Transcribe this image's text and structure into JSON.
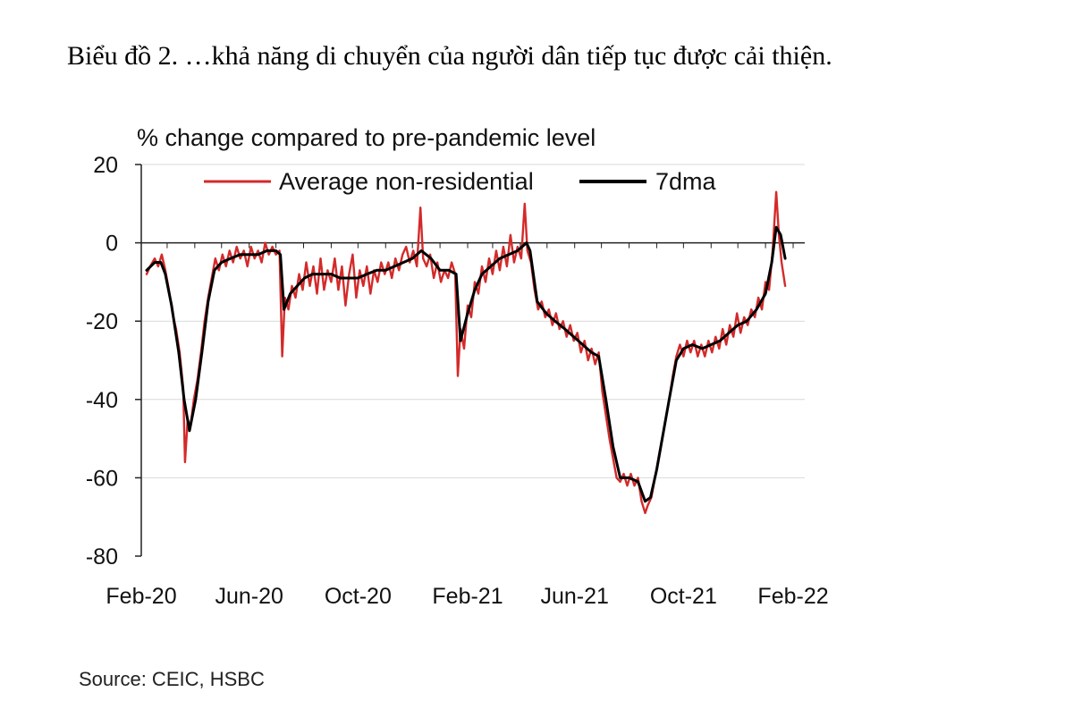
{
  "page": {
    "title": "Biểu đồ 2. …khả năng di chuyển của người dân tiếp tục được cải thiện.",
    "source": "Source:  CEIC, HSBC"
  },
  "colors": {
    "series_red": "#d42a2a",
    "series_black": "#000000",
    "grid": "#d9d9d9",
    "axis": "#222222"
  },
  "chart_data": {
    "type": "line",
    "title": "",
    "ylabel": "% change compared to pre-pandemic level",
    "xlabel": "",
    "ylim": [
      -80,
      20
    ],
    "yticks": [
      20,
      0,
      -20,
      -40,
      -60,
      -80
    ],
    "xlim": [
      "2020-02-15",
      "2022-02-28"
    ],
    "xticks": [
      {
        "date": "2020-02-15",
        "label": "Feb-20"
      },
      {
        "date": "2020-06-15",
        "label": "Jun-20"
      },
      {
        "date": "2020-10-15",
        "label": "Oct-20"
      },
      {
        "date": "2021-02-15",
        "label": "Feb-21"
      },
      {
        "date": "2021-06-15",
        "label": "Jun-21"
      },
      {
        "date": "2021-10-15",
        "label": "Oct-21"
      },
      {
        "date": "2022-02-15",
        "label": "Feb-22"
      }
    ],
    "grid": true,
    "legend_position": "top",
    "series": [
      {
        "name": "Average non-residential",
        "color": "#d42a2a",
        "points": [
          [
            "2020-02-21",
            -8
          ],
          [
            "2020-02-25",
            -6
          ],
          [
            "2020-03-01",
            -4
          ],
          [
            "2020-03-05",
            -6
          ],
          [
            "2020-03-09",
            -3
          ],
          [
            "2020-03-13",
            -7
          ],
          [
            "2020-03-17",
            -12
          ],
          [
            "2020-03-21",
            -18
          ],
          [
            "2020-03-25",
            -22
          ],
          [
            "2020-03-29",
            -28
          ],
          [
            "2020-04-02",
            -37
          ],
          [
            "2020-04-04",
            -56
          ],
          [
            "2020-04-07",
            -45
          ],
          [
            "2020-04-10",
            -47
          ],
          [
            "2020-04-14",
            -40
          ],
          [
            "2020-04-18",
            -35
          ],
          [
            "2020-04-22",
            -28
          ],
          [
            "2020-04-26",
            -20
          ],
          [
            "2020-04-30",
            -14
          ],
          [
            "2020-05-04",
            -9
          ],
          [
            "2020-05-08",
            -4
          ],
          [
            "2020-05-12",
            -7
          ],
          [
            "2020-05-16",
            -3
          ],
          [
            "2020-05-20",
            -6
          ],
          [
            "2020-05-24",
            -2
          ],
          [
            "2020-05-28",
            -5
          ],
          [
            "2020-06-01",
            -1
          ],
          [
            "2020-06-05",
            -4
          ],
          [
            "2020-06-09",
            -2
          ],
          [
            "2020-06-13",
            -6
          ],
          [
            "2020-06-17",
            -1
          ],
          [
            "2020-06-21",
            -4
          ],
          [
            "2020-06-25",
            -2
          ],
          [
            "2020-06-29",
            -5
          ],
          [
            "2020-07-03",
            0
          ],
          [
            "2020-07-07",
            -3
          ],
          [
            "2020-07-11",
            -1
          ],
          [
            "2020-07-15",
            -3
          ],
          [
            "2020-07-19",
            -2
          ],
          [
            "2020-07-22",
            -29
          ],
          [
            "2020-07-25",
            -14
          ],
          [
            "2020-07-29",
            -17
          ],
          [
            "2020-08-02",
            -11
          ],
          [
            "2020-08-06",
            -14
          ],
          [
            "2020-08-10",
            -8
          ],
          [
            "2020-08-14",
            -12
          ],
          [
            "2020-08-18",
            -5
          ],
          [
            "2020-08-22",
            -11
          ],
          [
            "2020-08-26",
            -6
          ],
          [
            "2020-08-30",
            -13
          ],
          [
            "2020-09-03",
            -4
          ],
          [
            "2020-09-07",
            -12
          ],
          [
            "2020-09-11",
            -7
          ],
          [
            "2020-09-15",
            -10
          ],
          [
            "2020-09-19",
            -4
          ],
          [
            "2020-09-23",
            -12
          ],
          [
            "2020-09-27",
            -6
          ],
          [
            "2020-10-01",
            -16
          ],
          [
            "2020-10-05",
            -8
          ],
          [
            "2020-10-09",
            -3
          ],
          [
            "2020-10-13",
            -14
          ],
          [
            "2020-10-17",
            -7
          ],
          [
            "2020-10-21",
            -11
          ],
          [
            "2020-10-25",
            -6
          ],
          [
            "2020-10-29",
            -13
          ],
          [
            "2020-11-02",
            -7
          ],
          [
            "2020-11-06",
            -10
          ],
          [
            "2020-11-10",
            -5
          ],
          [
            "2020-11-14",
            -8
          ],
          [
            "2020-11-18",
            -5
          ],
          [
            "2020-11-22",
            -9
          ],
          [
            "2020-11-26",
            -4
          ],
          [
            "2020-11-30",
            -7
          ],
          [
            "2020-12-04",
            -3
          ],
          [
            "2020-12-08",
            -1
          ],
          [
            "2020-12-12",
            -5
          ],
          [
            "2020-12-16",
            -2
          ],
          [
            "2020-12-20",
            -6
          ],
          [
            "2020-12-24",
            9
          ],
          [
            "2020-12-27",
            -4
          ],
          [
            "2020-12-31",
            -6
          ],
          [
            "2021-01-04",
            -3
          ],
          [
            "2021-01-08",
            -9
          ],
          [
            "2021-01-12",
            -5
          ],
          [
            "2021-01-16",
            -10
          ],
          [
            "2021-01-20",
            -7
          ],
          [
            "2021-01-24",
            -9
          ],
          [
            "2021-01-28",
            -5
          ],
          [
            "2021-02-01",
            -8
          ],
          [
            "2021-02-04",
            -34
          ],
          [
            "2021-02-07",
            -22
          ],
          [
            "2021-02-11",
            -27
          ],
          [
            "2021-02-15",
            -16
          ],
          [
            "2021-02-19",
            -19
          ],
          [
            "2021-02-23",
            -10
          ],
          [
            "2021-02-27",
            -13
          ],
          [
            "2021-03-03",
            -6
          ],
          [
            "2021-03-07",
            -10
          ],
          [
            "2021-03-11",
            -4
          ],
          [
            "2021-03-15",
            -8
          ],
          [
            "2021-03-19",
            -2
          ],
          [
            "2021-03-23",
            -7
          ],
          [
            "2021-03-27",
            -1
          ],
          [
            "2021-03-31",
            -6
          ],
          [
            "2021-04-04",
            2
          ],
          [
            "2021-04-08",
            -5
          ],
          [
            "2021-04-12",
            -1
          ],
          [
            "2021-04-16",
            -4
          ],
          [
            "2021-04-20",
            10
          ],
          [
            "2021-04-23",
            -2
          ],
          [
            "2021-04-27",
            -5
          ],
          [
            "2021-05-01",
            -12
          ],
          [
            "2021-05-05",
            -17
          ],
          [
            "2021-05-09",
            -15
          ],
          [
            "2021-05-13",
            -19
          ],
          [
            "2021-05-17",
            -17
          ],
          [
            "2021-05-21",
            -21
          ],
          [
            "2021-05-25",
            -18
          ],
          [
            "2021-05-29",
            -22
          ],
          [
            "2021-06-02",
            -20
          ],
          [
            "2021-06-06",
            -24
          ],
          [
            "2021-06-10",
            -21
          ],
          [
            "2021-06-14",
            -25
          ],
          [
            "2021-06-18",
            -23
          ],
          [
            "2021-06-22",
            -28
          ],
          [
            "2021-06-26",
            -25
          ],
          [
            "2021-06-30",
            -30
          ],
          [
            "2021-07-04",
            -27
          ],
          [
            "2021-07-08",
            -31
          ],
          [
            "2021-07-12",
            -28
          ],
          [
            "2021-07-16",
            -38
          ],
          [
            "2021-07-20",
            -44
          ],
          [
            "2021-07-24",
            -50
          ],
          [
            "2021-07-28",
            -55
          ],
          [
            "2021-08-01",
            -60
          ],
          [
            "2021-08-05",
            -61
          ],
          [
            "2021-08-09",
            -59
          ],
          [
            "2021-08-13",
            -62
          ],
          [
            "2021-08-17",
            -59
          ],
          [
            "2021-08-21",
            -62
          ],
          [
            "2021-08-25",
            -60
          ],
          [
            "2021-08-29",
            -66
          ],
          [
            "2021-09-02",
            -69
          ],
          [
            "2021-09-05",
            -67
          ],
          [
            "2021-09-09",
            -65
          ],
          [
            "2021-09-13",
            -60
          ],
          [
            "2021-09-17",
            -55
          ],
          [
            "2021-09-21",
            -50
          ],
          [
            "2021-09-25",
            -45
          ],
          [
            "2021-09-29",
            -40
          ],
          [
            "2021-10-03",
            -34
          ],
          [
            "2021-10-07",
            -29
          ],
          [
            "2021-10-11",
            -26
          ],
          [
            "2021-10-15",
            -29
          ],
          [
            "2021-10-19",
            -25
          ],
          [
            "2021-10-23",
            -28
          ],
          [
            "2021-10-27",
            -25
          ],
          [
            "2021-10-31",
            -29
          ],
          [
            "2021-11-04",
            -26
          ],
          [
            "2021-11-08",
            -29
          ],
          [
            "2021-11-12",
            -25
          ],
          [
            "2021-11-16",
            -28
          ],
          [
            "2021-11-20",
            -24
          ],
          [
            "2021-11-24",
            -27
          ],
          [
            "2021-11-28",
            -22
          ],
          [
            "2021-12-02",
            -26
          ],
          [
            "2021-12-06",
            -21
          ],
          [
            "2021-12-10",
            -24
          ],
          [
            "2021-12-14",
            -18
          ],
          [
            "2021-12-18",
            -23
          ],
          [
            "2021-12-22",
            -19
          ],
          [
            "2021-12-26",
            -21
          ],
          [
            "2021-12-30",
            -17
          ],
          [
            "2022-01-03",
            -19
          ],
          [
            "2022-01-07",
            -14
          ],
          [
            "2022-01-11",
            -17
          ],
          [
            "2022-01-15",
            -10
          ],
          [
            "2022-01-19",
            -12
          ],
          [
            "2022-01-23",
            -2
          ],
          [
            "2022-01-27",
            13
          ],
          [
            "2022-01-30",
            2
          ],
          [
            "2022-02-02",
            -5
          ],
          [
            "2022-02-06",
            -11
          ]
        ]
      },
      {
        "name": "7dma",
        "color": "#000000",
        "points": [
          [
            "2020-02-21",
            -7
          ],
          [
            "2020-03-01",
            -5
          ],
          [
            "2020-03-08",
            -5
          ],
          [
            "2020-03-13",
            -8
          ],
          [
            "2020-03-20",
            -16
          ],
          [
            "2020-03-28",
            -28
          ],
          [
            "2020-04-03",
            -40
          ],
          [
            "2020-04-09",
            -48
          ],
          [
            "2020-04-16",
            -40
          ],
          [
            "2020-04-23",
            -28
          ],
          [
            "2020-04-30",
            -15
          ],
          [
            "2020-05-07",
            -7
          ],
          [
            "2020-05-15",
            -5
          ],
          [
            "2020-05-25",
            -4
          ],
          [
            "2020-06-05",
            -3
          ],
          [
            "2020-06-15",
            -3
          ],
          [
            "2020-06-25",
            -3
          ],
          [
            "2020-07-05",
            -2
          ],
          [
            "2020-07-15",
            -2
          ],
          [
            "2020-07-20",
            -3
          ],
          [
            "2020-07-24",
            -17
          ],
          [
            "2020-07-31",
            -13
          ],
          [
            "2020-08-08",
            -11
          ],
          [
            "2020-08-16",
            -9
          ],
          [
            "2020-08-25",
            -8
          ],
          [
            "2020-09-05",
            -8
          ],
          [
            "2020-09-15",
            -8
          ],
          [
            "2020-09-25",
            -9
          ],
          [
            "2020-10-05",
            -9
          ],
          [
            "2020-10-15",
            -9
          ],
          [
            "2020-10-25",
            -8
          ],
          [
            "2020-11-05",
            -7
          ],
          [
            "2020-11-15",
            -7
          ],
          [
            "2020-11-25",
            -6
          ],
          [
            "2020-12-05",
            -5
          ],
          [
            "2020-12-15",
            -4
          ],
          [
            "2020-12-25",
            -2
          ],
          [
            "2021-01-05",
            -4
          ],
          [
            "2021-01-15",
            -7
          ],
          [
            "2021-01-25",
            -7
          ],
          [
            "2021-02-02",
            -8
          ],
          [
            "2021-02-07",
            -25
          ],
          [
            "2021-02-15",
            -18
          ],
          [
            "2021-02-23",
            -12
          ],
          [
            "2021-03-03",
            -8
          ],
          [
            "2021-03-13",
            -6
          ],
          [
            "2021-03-23",
            -4
          ],
          [
            "2021-04-02",
            -3
          ],
          [
            "2021-04-12",
            -2
          ],
          [
            "2021-04-22",
            0
          ],
          [
            "2021-04-26",
            -2
          ],
          [
            "2021-05-04",
            -15
          ],
          [
            "2021-05-14",
            -18
          ],
          [
            "2021-05-24",
            -20
          ],
          [
            "2021-06-04",
            -22
          ],
          [
            "2021-06-14",
            -24
          ],
          [
            "2021-06-24",
            -26
          ],
          [
            "2021-07-04",
            -28
          ],
          [
            "2021-07-12",
            -29
          ],
          [
            "2021-07-20",
            -40
          ],
          [
            "2021-07-28",
            -52
          ],
          [
            "2021-08-05",
            -60
          ],
          [
            "2021-08-15",
            -60
          ],
          [
            "2021-08-25",
            -61
          ],
          [
            "2021-09-02",
            -66
          ],
          [
            "2021-09-08",
            -65
          ],
          [
            "2021-09-15",
            -58
          ],
          [
            "2021-09-22",
            -49
          ],
          [
            "2021-09-29",
            -40
          ],
          [
            "2021-10-07",
            -30
          ],
          [
            "2021-10-15",
            -27
          ],
          [
            "2021-10-25",
            -26
          ],
          [
            "2021-11-05",
            -27
          ],
          [
            "2021-11-15",
            -26
          ],
          [
            "2021-11-25",
            -25
          ],
          [
            "2021-12-05",
            -23
          ],
          [
            "2021-12-15",
            -21
          ],
          [
            "2021-12-25",
            -20
          ],
          [
            "2022-01-05",
            -17
          ],
          [
            "2022-01-15",
            -13
          ],
          [
            "2022-01-22",
            -5
          ],
          [
            "2022-01-27",
            4
          ],
          [
            "2022-02-01",
            2
          ],
          [
            "2022-02-06",
            -4
          ]
        ]
      }
    ]
  }
}
